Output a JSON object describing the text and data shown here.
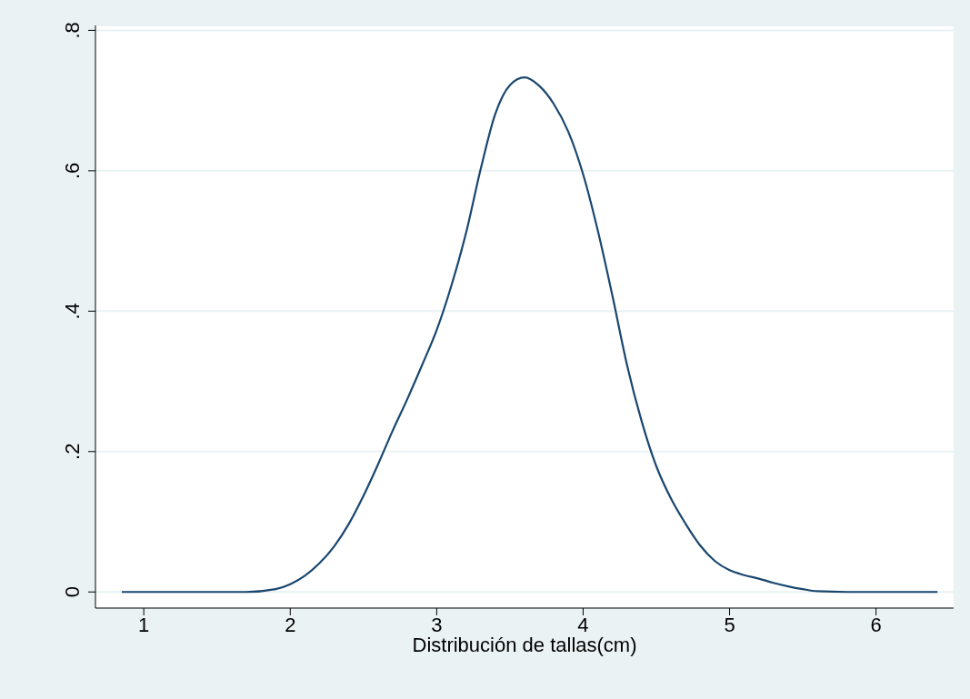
{
  "chart_data": {
    "type": "line",
    "xlabel": "Distribución de tallas(cm)",
    "x": [
      0.85,
      1.7,
      1.9,
      2.0,
      2.1,
      2.2,
      2.3,
      2.4,
      2.5,
      2.6,
      2.7,
      2.8,
      2.9,
      3.0,
      3.1,
      3.2,
      3.3,
      3.4,
      3.5,
      3.6,
      3.7,
      3.8,
      3.9,
      4.0,
      4.1,
      4.2,
      4.3,
      4.4,
      4.5,
      4.6,
      4.7,
      4.8,
      4.9,
      5.0,
      5.1,
      5.2,
      5.3,
      5.4,
      5.5,
      5.6,
      5.8,
      6.42
    ],
    "values": [
      0,
      0,
      0.004,
      0.011,
      0.023,
      0.041,
      0.065,
      0.097,
      0.137,
      0.182,
      0.23,
      0.275,
      0.323,
      0.373,
      0.436,
      0.511,
      0.602,
      0.681,
      0.722,
      0.733,
      0.721,
      0.695,
      0.655,
      0.595,
      0.515,
      0.422,
      0.323,
      0.243,
      0.179,
      0.133,
      0.097,
      0.066,
      0.044,
      0.031,
      0.024,
      0.019,
      0.013,
      0.008,
      0.004,
      0.001,
      0,
      0
    ],
    "color": "#1a476f",
    "xlim": [
      0.67,
      6.53
    ],
    "ylim": [
      -0.023,
      0.807
    ],
    "xticks": [
      1,
      2,
      3,
      4,
      5,
      6
    ],
    "yticks": [
      0,
      {
        "value": 0.2,
        "label": ".2"
      },
      {
        "value": 0.4,
        "label": ".4"
      },
      {
        "value": 0.6,
        "label": ".6"
      },
      {
        "value": 0.8,
        "label": ".8"
      }
    ],
    "grid": "y"
  }
}
